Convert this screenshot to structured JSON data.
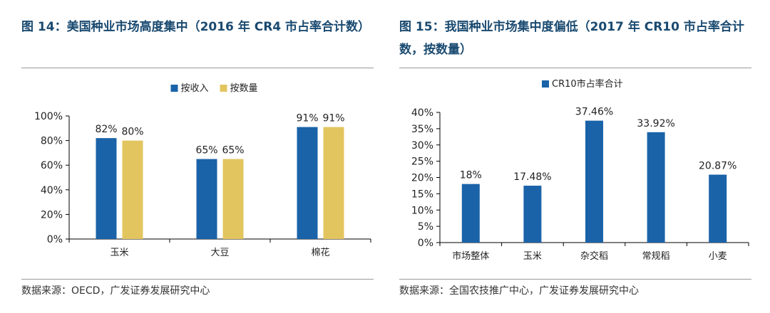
{
  "figures": [
    {
      "title": "图 14：美国种业市场高度集中（2016 年 CR4 市占率合计数）",
      "source": "数据来源：OECD，广发证券发展研究中心"
    },
    {
      "title": "图 15：我国种业市场集中度偏低（2017 年 CR10 市占率合计数，按数量）",
      "source": "数据来源：全国农技推广中心，广发证券发展研究中心"
    }
  ],
  "chart_data": [
    {
      "type": "bar",
      "title": "图 14：美国种业市场高度集中（2016 年 CR4 市占率合计数）",
      "categories": [
        "玉米",
        "大豆",
        "棉花"
      ],
      "series": [
        {
          "name": "按收入",
          "values": [
            82,
            65,
            91
          ],
          "labels": [
            "82%",
            "65%",
            "91%"
          ],
          "color": "#1a63a8"
        },
        {
          "name": "按数量",
          "values": [
            80,
            65,
            91
          ],
          "labels": [
            "80%",
            "65%",
            "91%"
          ],
          "color": "#e3c55f"
        }
      ],
      "ylim": [
        0,
        100
      ],
      "yticks": [
        0,
        20,
        40,
        60,
        80,
        100
      ],
      "ytick_labels": [
        "0%",
        "20%",
        "40%",
        "60%",
        "80%",
        "100%"
      ],
      "xlabel": "",
      "ylabel": "",
      "legend": "top-center",
      "grid": false
    },
    {
      "type": "bar",
      "title": "图 15：我国种业市场集中度偏低（2017 年 CR10 市占率合计数，按数量）",
      "categories": [
        "市场整体",
        "玉米",
        "杂交稻",
        "常规稻",
        "小麦"
      ],
      "series": [
        {
          "name": "CR10市占率合计",
          "values": [
            18,
            17.48,
            37.46,
            33.92,
            20.87
          ],
          "labels": [
            "18%",
            "17.48%",
            "37.46%",
            "33.92%",
            "20.87%"
          ],
          "color": "#1a63a8"
        }
      ],
      "ylim": [
        0,
        40
      ],
      "yticks": [
        0,
        5,
        10,
        15,
        20,
        25,
        30,
        35,
        40
      ],
      "ytick_labels": [
        "0%",
        "5%",
        "10%",
        "15%",
        "20%",
        "25%",
        "30%",
        "35%",
        "40%"
      ],
      "xlabel": "",
      "ylabel": "",
      "legend": "top-center",
      "grid": false
    }
  ]
}
